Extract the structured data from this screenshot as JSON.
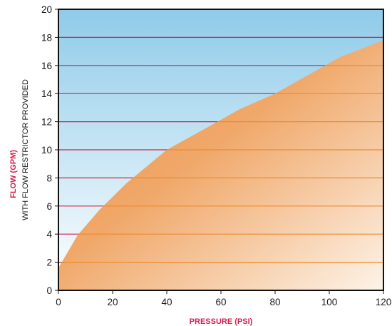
{
  "chart_data": {
    "type": "area",
    "title": "",
    "xlabel": "PRESSURE (PSI)",
    "ylabel": "FLOW (GPM)",
    "ylabel_sub": "WITH FLOW RESTRICTOR PROVIDED",
    "xlim": [
      0,
      120
    ],
    "ylim": [
      0,
      20
    ],
    "x_ticks": [
      "0",
      "20",
      "40",
      "60",
      "80",
      "100",
      "120"
    ],
    "y_ticks": [
      "0",
      "2",
      "4",
      "6",
      "8",
      "10",
      "12",
      "14",
      "16",
      "18",
      "20"
    ],
    "grid": "horizontal",
    "series": [
      {
        "x": [
          0,
          7,
          15,
          25,
          40,
          55,
          67,
          80,
          92,
          104,
          120
        ],
        "values": [
          1.6,
          3.9,
          5.7,
          7.6,
          10.0,
          11.6,
          12.9,
          14.0,
          15.3,
          16.6,
          17.8
        ]
      }
    ],
    "colors": {
      "background_top": "#8fcbe9",
      "background_bottom": "#ffffff",
      "area_dark": "#e98f3e",
      "area_light": "#fdf3e8",
      "gridline": "#d81f4a",
      "gridline_over_area": "#ee8a2e",
      "frame": "#111111",
      "axis_title": "#d61f4e"
    }
  }
}
